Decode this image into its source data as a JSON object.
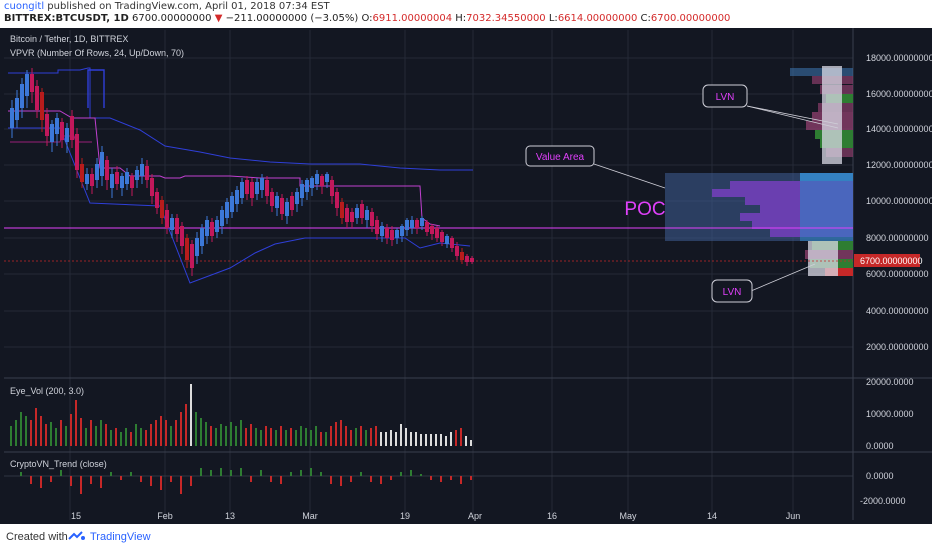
{
  "header": {
    "username": "cuongitl",
    "published_text": " published on TradingView.com, April 01, 2018 07:34 EST",
    "symbol": "BITTREX:BTCUSDT, 1D",
    "last": "6700.00000000",
    "change": "−211.00000000 (−3.05%)",
    "open_label": "O:",
    "open_value": "6911.00000004",
    "high_label": "H:",
    "high_value": "7032.34550000",
    "low_label": "L:",
    "low_value": "6614.00000000",
    "close_label": "C:",
    "close_value": "6700.00000000"
  },
  "legend": {
    "title": "Bitcoin / Tether, 1D, BITTREX",
    "indicator": "VPVR (Number Of Rows, 24, Up/Down, 70)"
  },
  "price_axis": {
    "ticks": [
      "18000.00000000",
      "16000.00000000",
      "14000.00000000",
      "12000.00000000",
      "10000.00000000",
      "8000.00000000",
      "6000.00000000",
      "4000.00000000",
      "2000.00000000"
    ],
    "current_label": "6700.00000000"
  },
  "annotations": {
    "lvn_top": "LVN",
    "lvn_bottom": "LVN",
    "value_area": "Value Area",
    "poc": "POC"
  },
  "volume_pane": {
    "title": "Eye_Vol (200, 3.0)",
    "ticks": [
      "20000.0000",
      "10000.0000",
      "0.0000"
    ]
  },
  "trend_pane": {
    "title": "CryptoVN_Trend (close)",
    "ticks": [
      "0.0000",
      "-2000.0000"
    ]
  },
  "time_axis": {
    "labels": [
      "15",
      "Feb",
      "13",
      "Mar",
      "19",
      "Apr",
      "16",
      "May",
      "14",
      "Jun"
    ]
  },
  "footer": {
    "created_with": "Created with",
    "brand": "TradingView"
  },
  "colors": {
    "background": "#131722",
    "grid": "#252a37",
    "bull": "#3c78d8",
    "bear": "#c2185b",
    "bear_dark": "#b71c1c",
    "poc_line": "#e040fb",
    "channel": "#2f3fd8",
    "vol_up": "#2e7d32",
    "vol_down": "#c62828",
    "price_label": "#c62828"
  }
}
